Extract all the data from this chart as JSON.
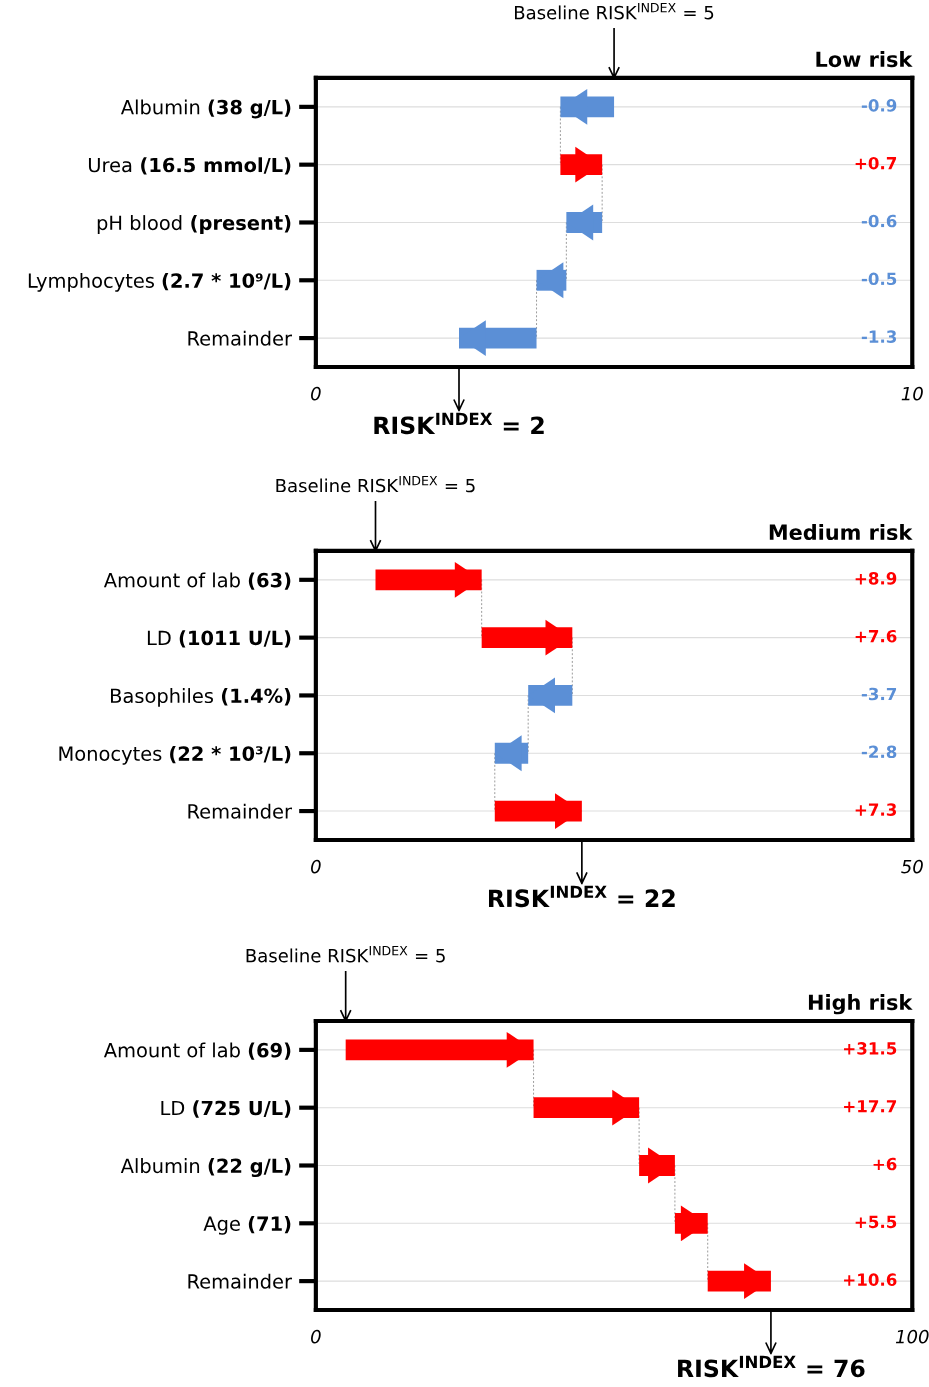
{
  "chart_data": [
    {
      "type": "bar",
      "orientation": "horizontal",
      "title": "Low risk",
      "categories": [
        "Albumin (38 g/L)",
        "Urea (16.5 mmol/L)",
        "pH blood (present)",
        "Lymphocytes (2.7 * 10⁹/L)",
        "Remainder"
      ],
      "values": [
        -0.9,
        0.7,
        -0.6,
        -0.5,
        -1.3
      ],
      "base": [
        5,
        4.1,
        4.8,
        4.2,
        3.7
      ],
      "colors": [
        "#5b8fd6",
        "#ff0000",
        "#5b8fd6",
        "#5b8fd6",
        "#5b8fd6"
      ],
      "value_labels": [
        "-0.9",
        "+0.7",
        "-0.6",
        "-0.5",
        "-1.3"
      ],
      "xlim": [
        0,
        10
      ],
      "xticks": [
        0,
        10
      ],
      "grid": "y",
      "annotations": [
        "Baseline RISK$^{INDEX}$ = 5",
        "RISK$^{INDEX}$ = 2"
      ]
    },
    {
      "type": "bar",
      "orientation": "horizontal",
      "title": "Medium risk",
      "categories": [
        "Amount of lab (63)",
        "LD (1011 U/L)",
        "Basophiles (1.4%)",
        "Monocytes (22 * 10³/L)",
        "Remainder"
      ],
      "values": [
        8.9,
        7.6,
        -3.7,
        -2.8,
        7.3
      ],
      "base": [
        5,
        13.9,
        21.5,
        17.8,
        15
      ],
      "colors": [
        "#ff0000",
        "#ff0000",
        "#5b8fd6",
        "#5b8fd6",
        "#ff0000"
      ],
      "value_labels": [
        "+8.9",
        "+7.6",
        "-3.7",
        "-2.8",
        "+7.3"
      ],
      "xlim": [
        0,
        50
      ],
      "xticks": [
        0,
        50
      ],
      "grid": "y",
      "annotations": [
        "Baseline RISK$^{INDEX}$ = 5",
        "RISK$^{INDEX}$ = 22"
      ]
    },
    {
      "type": "bar",
      "orientation": "horizontal",
      "title": "High risk",
      "categories": [
        "Amount of lab (69)",
        "LD (725 U/L)",
        "Albumin (22 g/L)",
        "Age (71)",
        "Remainder"
      ],
      "values": [
        31.5,
        17.7,
        6,
        5.5,
        10.6
      ],
      "base": [
        5,
        36.5,
        54.2,
        60.2,
        65.7
      ],
      "colors": [
        "#ff0000",
        "#ff0000",
        "#ff0000",
        "#ff0000",
        "#ff0000"
      ],
      "value_labels": [
        "+31.5",
        "+17.7",
        "+6",
        "+5.5",
        "+10.6"
      ],
      "xlim": [
        0,
        100
      ],
      "xticks": [
        0,
        100
      ],
      "grid": "y",
      "annotations": [
        "Baseline RISK$^{INDEX}$ = 5",
        "RISK$^{INDEX}$ = 76"
      ]
    }
  ]
}
